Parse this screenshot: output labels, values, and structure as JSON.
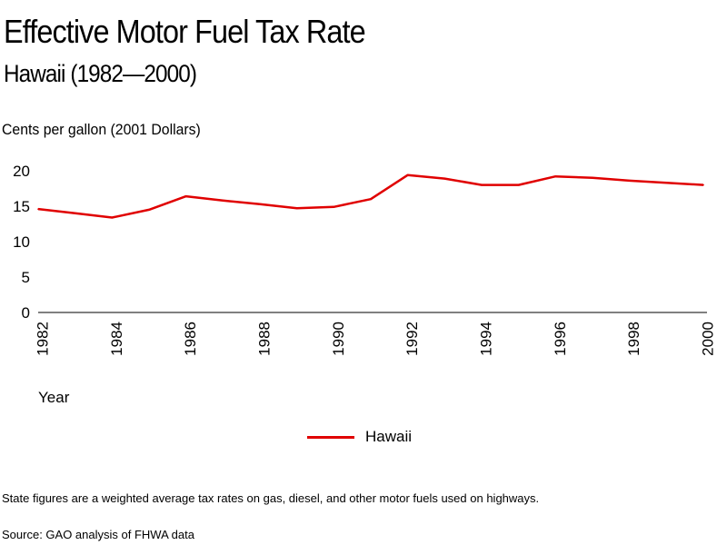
{
  "header": {
    "title": "Effective Motor Fuel Tax Rate",
    "subtitle": "Hawaii (1982—2000)"
  },
  "footer": {
    "note": "State figures are a weighted average tax rates on gas, diesel, and other motor fuels used on highways.",
    "source": "Source: GAO analysis of FHWA data"
  },
  "chart_data": {
    "type": "line",
    "ylabel": "Cents per gallon (2001 Dollars)",
    "xlabel": "Year",
    "ylim": [
      0,
      20
    ],
    "xlim": [
      1982,
      2000
    ],
    "y_ticks": [
      "0",
      "5",
      "10",
      "15",
      "20"
    ],
    "x_ticks": [
      "1982",
      "1984",
      "1986",
      "1988",
      "1990",
      "1992",
      "1994",
      "1996",
      "1998",
      "2000"
    ],
    "grid": false,
    "legend_position": "bottom-center",
    "x": [
      1982,
      1983,
      1984,
      1985,
      1986,
      1987,
      1988,
      1989,
      1990,
      1991,
      1992,
      1993,
      1994,
      1995,
      1996,
      1997,
      1998,
      1999,
      2000
    ],
    "series": [
      {
        "name": "Hawaii",
        "color": "#e00000",
        "values": [
          14.6,
          14.0,
          13.4,
          14.5,
          16.4,
          15.8,
          15.3,
          14.7,
          14.9,
          16.0,
          19.4,
          18.9,
          18.0,
          18.0,
          19.2,
          19.0,
          18.6,
          18.3,
          18.0
        ]
      }
    ]
  }
}
